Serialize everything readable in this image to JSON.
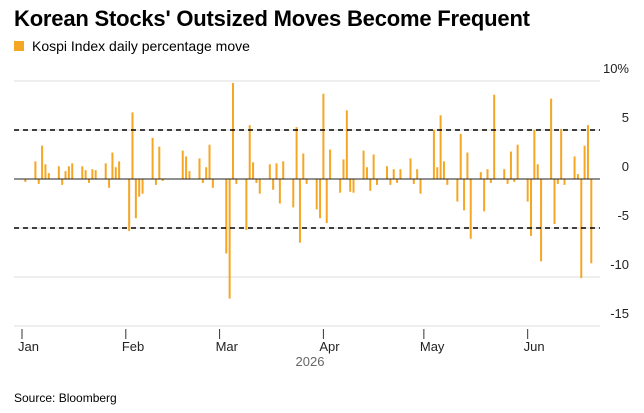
{
  "chart_data": {
    "type": "bar",
    "title": "Korean Stocks' Outsized Moves Become Frequent",
    "subtitle": "",
    "legend": [
      {
        "name": "Kospi Index daily percentage move",
        "color": "#f5a623"
      }
    ],
    "legend_position": "top-left",
    "series": [
      {
        "name": "Kospi Index daily percentage move",
        "color": "#f5a623",
        "points": [
          {
            "d": "2026-01-02",
            "v": -0.3
          },
          {
            "d": "2026-01-05",
            "v": 1.8
          },
          {
            "d": "2026-01-06",
            "v": -0.5
          },
          {
            "d": "2026-01-07",
            "v": 3.4
          },
          {
            "d": "2026-01-08",
            "v": 1.5
          },
          {
            "d": "2026-01-09",
            "v": 0.6
          },
          {
            "d": "2026-01-12",
            "v": 1.3
          },
          {
            "d": "2026-01-13",
            "v": -0.6
          },
          {
            "d": "2026-01-14",
            "v": 0.8
          },
          {
            "d": "2026-01-15",
            "v": 1.3
          },
          {
            "d": "2026-01-16",
            "v": 1.6
          },
          {
            "d": "2026-01-19",
            "v": 1.3
          },
          {
            "d": "2026-01-20",
            "v": 0.9
          },
          {
            "d": "2026-01-21",
            "v": -0.4
          },
          {
            "d": "2026-01-22",
            "v": 1.0
          },
          {
            "d": "2026-01-23",
            "v": 0.9
          },
          {
            "d": "2026-01-26",
            "v": 1.6
          },
          {
            "d": "2026-01-27",
            "v": -0.9
          },
          {
            "d": "2026-01-28",
            "v": 2.7
          },
          {
            "d": "2026-01-29",
            "v": 1.2
          },
          {
            "d": "2026-01-30",
            "v": 1.8
          },
          {
            "d": "2026-02-02",
            "v": -5.3
          },
          {
            "d": "2026-02-03",
            "v": 6.8
          },
          {
            "d": "2026-02-04",
            "v": -4.0
          },
          {
            "d": "2026-02-05",
            "v": -1.8
          },
          {
            "d": "2026-02-06",
            "v": -1.5
          },
          {
            "d": "2026-02-09",
            "v": 4.2
          },
          {
            "d": "2026-02-10",
            "v": -0.6
          },
          {
            "d": "2026-02-11",
            "v": 3.3
          },
          {
            "d": "2026-02-12",
            "v": -0.2
          },
          {
            "d": "2026-02-18",
            "v": 2.9
          },
          {
            "d": "2026-02-19",
            "v": 2.3
          },
          {
            "d": "2026-02-20",
            "v": 0.8
          },
          {
            "d": "2026-02-23",
            "v": 2.1
          },
          {
            "d": "2026-02-24",
            "v": -0.4
          },
          {
            "d": "2026-02-25",
            "v": 1.2
          },
          {
            "d": "2026-02-26",
            "v": 3.5
          },
          {
            "d": "2026-02-27",
            "v": -0.9
          },
          {
            "d": "2026-03-03",
            "v": -7.6
          },
          {
            "d": "2026-03-04",
            "v": -12.2
          },
          {
            "d": "2026-03-05",
            "v": 9.8
          },
          {
            "d": "2026-03-06",
            "v": -0.5
          },
          {
            "d": "2026-03-09",
            "v": -5.2
          },
          {
            "d": "2026-03-10",
            "v": 5.5
          },
          {
            "d": "2026-03-11",
            "v": 1.7
          },
          {
            "d": "2026-03-12",
            "v": -0.4
          },
          {
            "d": "2026-03-13",
            "v": -1.5
          },
          {
            "d": "2026-03-16",
            "v": 1.5
          },
          {
            "d": "2026-03-17",
            "v": -1.1
          },
          {
            "d": "2026-03-18",
            "v": 1.6
          },
          {
            "d": "2026-03-19",
            "v": -2.5
          },
          {
            "d": "2026-03-20",
            "v": 1.8
          },
          {
            "d": "2026-03-23",
            "v": -2.9
          },
          {
            "d": "2026-03-24",
            "v": 5.3
          },
          {
            "d": "2026-03-25",
            "v": -6.5
          },
          {
            "d": "2026-03-26",
            "v": 2.6
          },
          {
            "d": "2026-03-27",
            "v": -0.5
          },
          {
            "d": "2026-03-30",
            "v": -3.1
          },
          {
            "d": "2026-03-31",
            "v": -4.0
          },
          {
            "d": "2026-04-01",
            "v": 8.7
          },
          {
            "d": "2026-04-02",
            "v": -4.5
          },
          {
            "d": "2026-04-03",
            "v": 3.0
          },
          {
            "d": "2026-04-06",
            "v": -1.4
          },
          {
            "d": "2026-04-07",
            "v": 2.0
          },
          {
            "d": "2026-04-08",
            "v": 7.0
          },
          {
            "d": "2026-04-09",
            "v": -1.3
          },
          {
            "d": "2026-04-10",
            "v": -1.4
          },
          {
            "d": "2026-04-13",
            "v": 2.9
          },
          {
            "d": "2026-04-14",
            "v": 1.2
          },
          {
            "d": "2026-04-15",
            "v": -1.2
          },
          {
            "d": "2026-04-16",
            "v": 2.5
          },
          {
            "d": "2026-04-17",
            "v": -0.6
          },
          {
            "d": "2026-04-20",
            "v": 1.3
          },
          {
            "d": "2026-04-21",
            "v": -0.6
          },
          {
            "d": "2026-04-22",
            "v": 1.0
          },
          {
            "d": "2026-04-23",
            "v": -0.4
          },
          {
            "d": "2026-04-24",
            "v": 1.0
          },
          {
            "d": "2026-04-27",
            "v": 2.1
          },
          {
            "d": "2026-04-28",
            "v": -0.5
          },
          {
            "d": "2026-04-29",
            "v": 1.0
          },
          {
            "d": "2026-04-30",
            "v": -1.5
          },
          {
            "d": "2026-05-04",
            "v": 5.0
          },
          {
            "d": "2026-05-05",
            "v": 1.2
          },
          {
            "d": "2026-05-06",
            "v": 6.5
          },
          {
            "d": "2026-05-07",
            "v": 1.8
          },
          {
            "d": "2026-05-08",
            "v": -0.6
          },
          {
            "d": "2026-05-11",
            "v": -2.3
          },
          {
            "d": "2026-05-12",
            "v": 4.6
          },
          {
            "d": "2026-05-13",
            "v": -3.2
          },
          {
            "d": "2026-05-14",
            "v": 2.7
          },
          {
            "d": "2026-05-15",
            "v": -6.1
          },
          {
            "d": "2026-05-18",
            "v": 0.7
          },
          {
            "d": "2026-05-19",
            "v": -3.3
          },
          {
            "d": "2026-05-20",
            "v": 1.0
          },
          {
            "d": "2026-05-21",
            "v": -0.4
          },
          {
            "d": "2026-05-22",
            "v": 8.6
          },
          {
            "d": "2026-05-25",
            "v": 1.0
          },
          {
            "d": "2026-05-26",
            "v": -0.5
          },
          {
            "d": "2026-05-27",
            "v": 2.8
          },
          {
            "d": "2026-05-28",
            "v": -0.3
          },
          {
            "d": "2026-05-29",
            "v": 3.5
          },
          {
            "d": "2026-06-01",
            "v": -2.3
          },
          {
            "d": "2026-06-02",
            "v": -5.8
          },
          {
            "d": "2026-06-03",
            "v": 5.0
          },
          {
            "d": "2026-06-04",
            "v": 1.5
          },
          {
            "d": "2026-06-05",
            "v": -8.4
          },
          {
            "d": "2026-06-08",
            "v": 8.2
          },
          {
            "d": "2026-06-09",
            "v": -4.6
          },
          {
            "d": "2026-06-10",
            "v": -0.5
          },
          {
            "d": "2026-06-11",
            "v": 5.1
          },
          {
            "d": "2026-06-12",
            "v": -0.6
          },
          {
            "d": "2026-06-15",
            "v": 2.3
          },
          {
            "d": "2026-06-16",
            "v": 0.5
          },
          {
            "d": "2026-06-17",
            "v": -10.1
          },
          {
            "d": "2026-06-18",
            "v": 3.4
          },
          {
            "d": "2026-06-19",
            "v": 5.5
          },
          {
            "d": "2026-06-20",
            "v": -8.6
          }
        ]
      }
    ],
    "x_axis": {
      "type": "date",
      "range": [
        "2026-01-01",
        "2026-06-22"
      ],
      "ticks": [
        {
          "d": "2026-01-01",
          "label": "Jan"
        },
        {
          "d": "2026-02-01",
          "label": "Feb"
        },
        {
          "d": "2026-03-01",
          "label": "Mar"
        },
        {
          "d": "2026-04-01",
          "label": "Apr"
        },
        {
          "d": "2026-05-01",
          "label": "May"
        },
        {
          "d": "2026-06-01",
          "label": "Jun"
        }
      ],
      "year_label": "2026"
    },
    "y_axis": {
      "ylim": [
        -15,
        10
      ],
      "ticks": [
        {
          "v": 10,
          "label": "10%"
        },
        {
          "v": 5,
          "label": "5"
        },
        {
          "v": 0,
          "label": "0"
        },
        {
          "v": -5,
          "label": "-5"
        },
        {
          "v": -10,
          "label": "-10"
        },
        {
          "v": -15,
          "label": "-15"
        }
      ],
      "position": "right",
      "grid": true
    },
    "reference_lines": [
      {
        "v": 5,
        "style": "dashed"
      },
      {
        "v": -5,
        "style": "dashed"
      }
    ]
  },
  "source": "Source: Bloomberg",
  "colors": {
    "bar": "#f5a623",
    "grid": "#dddddd",
    "zero": "#222222",
    "dashed": "#000000"
  }
}
